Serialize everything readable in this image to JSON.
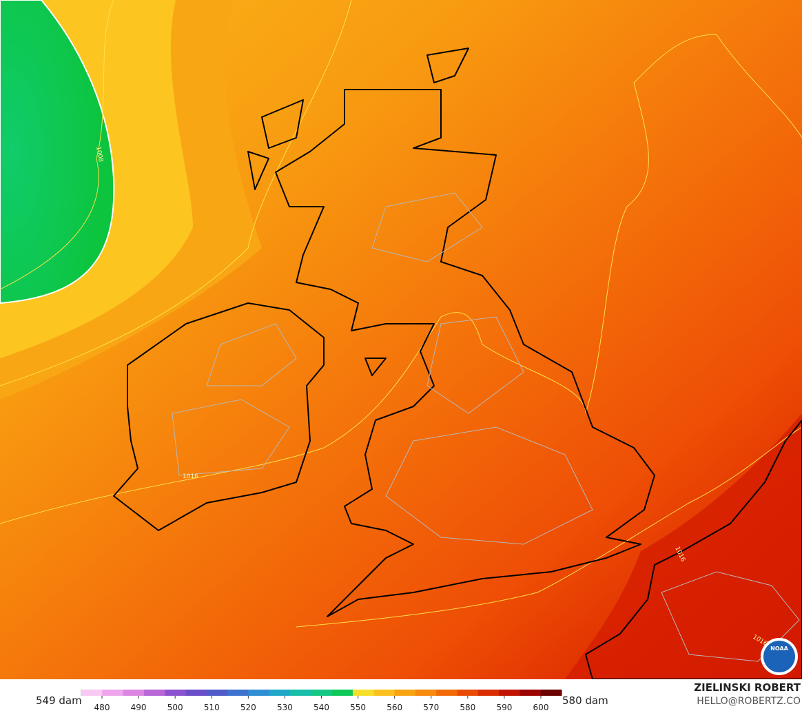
{
  "map": {
    "contour_labels": [
      "1008",
      "1016",
      "1016",
      "1016"
    ],
    "logo": "NOAA"
  },
  "colorbar": {
    "low_label": "549 dam",
    "high_label": "580 dam",
    "ticks": [
      480,
      490,
      500,
      510,
      520,
      530,
      540,
      550,
      560,
      570,
      580,
      590,
      600
    ],
    "colors": [
      "#fde8fb",
      "#f8c9f3",
      "#efa6ec",
      "#dc86e3",
      "#b866d8",
      "#8d52cf",
      "#6a4dc9",
      "#4f5bc9",
      "#3d73cf",
      "#2e8ed4",
      "#21a8c9",
      "#18bea8",
      "#14c884",
      "#0fc85a",
      "#f6df2a",
      "#fcc11f",
      "#f9a312",
      "#f7890c",
      "#f26a08",
      "#ea4b04",
      "#d92d00",
      "#c01300",
      "#9c0400",
      "#6a0000",
      "#2a0000"
    ]
  },
  "footer": {
    "author": "ZIELINSKI ROBERT",
    "contact": "HELLO@ROBERTZ.CO"
  }
}
